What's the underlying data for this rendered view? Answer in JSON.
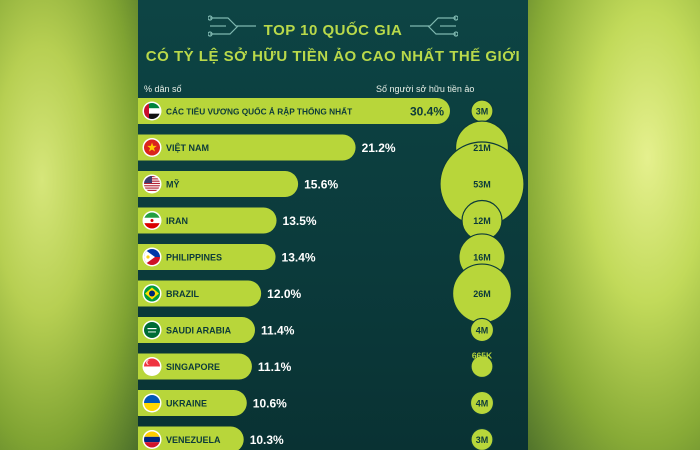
{
  "header": {
    "title_line1": "TOP 10 QUỐC GIA",
    "title_line2": "CÓ TỶ LỆ SỞ HỮU TIỀN ẢO CAO NHẤT THẾ GIỚI",
    "left_label": "% dân số",
    "right_label": "Số người sở hữu tiền ảo"
  },
  "colors": {
    "bar": "#b8d63a",
    "bubble": "#b8d63a",
    "background": "#0c3a3a",
    "title": "#b9d94a"
  },
  "chart_data": {
    "type": "bar",
    "title": "TOP 10 QUỐC GIA CÓ TỶ LỆ SỞ HỮU TIỀN ẢO CAO NHẤT THẾ GIỚI",
    "ylabel": "% dân số",
    "categories": [
      "CÁC TIỂU VƯƠNG QUỐC Ả RẬP THỐNG NHẤT",
      "VIỆT NAM",
      "MỸ",
      "IRAN",
      "PHILIPPINES",
      "BRAZIL",
      "SAUDI ARABIA",
      "SINGAPORE",
      "UKRAINE",
      "VENEZUELA"
    ],
    "flags": [
      "uae-flag-icon",
      "vietnam-flag-icon",
      "usa-flag-icon",
      "iran-flag-icon",
      "philippines-flag-icon",
      "brazil-flag-icon",
      "saudi-arabia-flag-icon",
      "singapore-flag-icon",
      "ukraine-flag-icon",
      "venezuela-flag-icon"
    ],
    "values": [
      30.4,
      21.2,
      15.6,
      13.5,
      13.4,
      12.0,
      11.4,
      11.1,
      10.6,
      10.3
    ],
    "value_labels": [
      "30.4%",
      "21.2%",
      "15.6%",
      "13.5%",
      "13.4%",
      "12.0%",
      "11.4%",
      "11.1%",
      "10.6%",
      "10.3%"
    ],
    "bubble_series": {
      "name": "Số người sở hữu tiền ảo",
      "values_millions": [
        3,
        21,
        53,
        12,
        16,
        26,
        4,
        0.665,
        4,
        3
      ],
      "labels": [
        "3M",
        "21M",
        "53M",
        "12M",
        "16M",
        "26M",
        "4M",
        "665K",
        "4M",
        "3M"
      ]
    }
  }
}
